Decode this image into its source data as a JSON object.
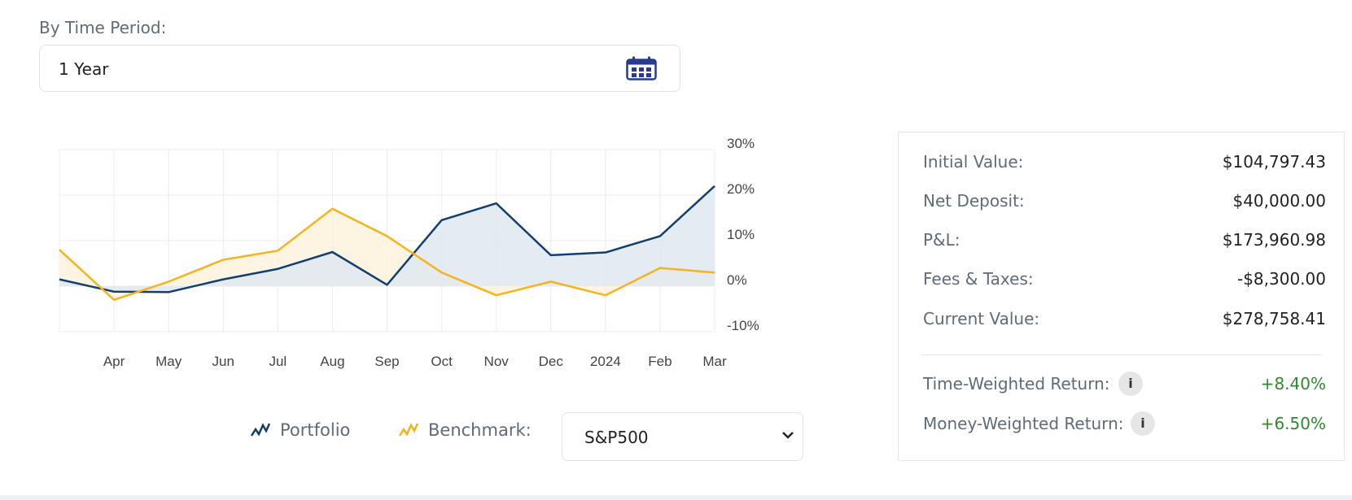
{
  "period": {
    "label": "By Time Period:",
    "value": "1 Year",
    "icon": "calendar-icon"
  },
  "chart_data": {
    "type": "line",
    "categories": [
      "Mar",
      "Apr",
      "May",
      "Jun",
      "Jul",
      "Aug",
      "Sep",
      "Oct",
      "Nov",
      "Dec",
      "2024",
      "Feb",
      "Mar"
    ],
    "x_tick_labels": [
      "Apr",
      "May",
      "Jun",
      "Jul",
      "Aug",
      "Sep",
      "Oct",
      "Nov",
      "Dec",
      "2024",
      "Feb",
      "Mar"
    ],
    "y_tick_labels": [
      "30%",
      "20%",
      "10%",
      "0%",
      "-10%"
    ],
    "ylim": [
      -10,
      30
    ],
    "grid": true,
    "y_axis_side": "right",
    "series": [
      {
        "name": "Portfolio",
        "color": "#123f6e",
        "fill": "#dfe7f0",
        "values": [
          1.5,
          -1.2,
          -1.3,
          1.5,
          3.8,
          7.5,
          0.3,
          14.5,
          18.2,
          6.8,
          7.4,
          11.0,
          22.0
        ]
      },
      {
        "name": "Benchmark",
        "color": "#f5b31e",
        "fill": "#fdf3dc",
        "values": [
          8.0,
          -3.0,
          1.0,
          5.8,
          7.8,
          17.0,
          11.0,
          3.0,
          -2.0,
          1.0,
          -2.0,
          4.0,
          3.0
        ]
      }
    ]
  },
  "legend": {
    "portfolio_label": "Portfolio",
    "benchmark_label": "Benchmark:",
    "benchmark_value": "S&P500"
  },
  "summary": {
    "rows": [
      {
        "label": "Initial Value:",
        "value": "$104,797.43"
      },
      {
        "label": "Net Deposit:",
        "value": "$40,000.00"
      },
      {
        "label": "P&L:",
        "value": "$173,960.98"
      },
      {
        "label": "Fees & Taxes:",
        "value": "-$8,300.00"
      },
      {
        "label": "Current Value:",
        "value": "$278,758.41"
      }
    ],
    "returns": [
      {
        "label": "Time-Weighted Return:",
        "value": "+8.40%"
      },
      {
        "label": "Money-Weighted Return:",
        "value": "+6.50%"
      }
    ],
    "positive_color": "#2e8b2e"
  }
}
